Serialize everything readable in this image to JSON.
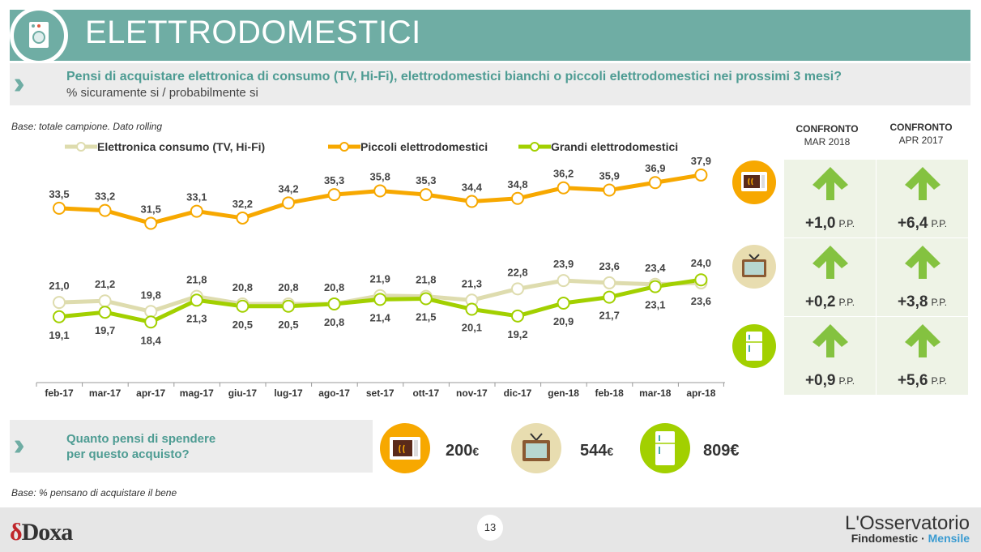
{
  "header": {
    "title": "ELETTRODOMESTICI",
    "icon": "washing-machine-icon"
  },
  "question": {
    "text": "Pensi di acquistare elettronica di consumo (TV, Hi-Fi), elettrodomestici bianchi o piccoli elettrodomestici nei prossimi 3 mesi?",
    "subtitle": "% sicuramente si / probabilmente si"
  },
  "base_note": "Base: totale campione. Dato rolling",
  "chart_data": {
    "type": "line",
    "categories": [
      "feb-17",
      "mar-17",
      "apr-17",
      "mag-17",
      "giu-17",
      "lug-17",
      "ago-17",
      "set-17",
      "ott-17",
      "nov-17",
      "dic-17",
      "gen-18",
      "feb-18",
      "mar-18",
      "apr-18"
    ],
    "series": [
      {
        "name": "Elettronica consumo (TV, Hi-Fi)",
        "color": "#dedcae",
        "values": [
          21.0,
          21.2,
          19.8,
          21.8,
          20.8,
          20.8,
          20.8,
          21.9,
          21.8,
          21.3,
          22.8,
          23.9,
          23.6,
          23.4,
          23.6
        ]
      },
      {
        "name": "Piccoli elettrodomestici",
        "color": "#f7a800",
        "values": [
          33.5,
          33.2,
          31.5,
          33.1,
          32.2,
          34.2,
          35.3,
          35.8,
          35.3,
          34.4,
          34.8,
          36.2,
          35.9,
          36.9,
          37.9
        ]
      },
      {
        "name": "Grandi elettrodomestici",
        "color": "#a2d000",
        "values": [
          19.1,
          19.7,
          18.4,
          21.3,
          20.5,
          20.5,
          20.8,
          21.4,
          21.5,
          20.1,
          19.2,
          20.9,
          21.7,
          23.1,
          24.0
        ]
      }
    ],
    "labels": {
      "piccoli": [
        "33,5",
        "33,2",
        "31,5",
        "33,1",
        "32,2",
        "34,2",
        "35,3",
        "35,8",
        "35,3",
        "34,4",
        "34,8",
        "36,2",
        "35,9",
        "36,9",
        "37,9"
      ],
      "upper": [
        "21,0",
        "21,2",
        "19,8",
        "21,8",
        "20,8",
        "20,8",
        "20,8",
        "21,9",
        "21,8",
        "21,3",
        "22,8",
        "23,9",
        "23,6",
        "23,4",
        "24,0"
      ],
      "lower": [
        "19,1",
        "19,7",
        "18,4",
        "21,3",
        "20,5",
        "20,5",
        "20,8",
        "21,4",
        "21,5",
        "20,1",
        "19,2",
        "20,9",
        "21,7",
        "23,1",
        "23,6"
      ]
    },
    "legend_position": "top",
    "grid": false
  },
  "comparison": {
    "headers": [
      {
        "title": "CONFRONTO",
        "sub": "MAR 2018"
      },
      {
        "title": "CONFRONTO",
        "sub": "APR 2017"
      }
    ],
    "unit": "P.P.",
    "rows": [
      {
        "item": "microwave-icon",
        "color": "#f7a800",
        "mar2018": "+1,0",
        "apr2017": "+6,4"
      },
      {
        "item": "tv-icon",
        "color": "#e8ddb0",
        "mar2018": "+0,2",
        "apr2017": "+3,8"
      },
      {
        "item": "fridge-icon",
        "color": "#a2d000",
        "mar2018": "+0,9",
        "apr2017": "+5,6"
      }
    ],
    "arrow_color": "#84c240"
  },
  "spending": {
    "question_line1": "Quanto pensi di spendere",
    "question_line2": "per questo acquisto?",
    "items": [
      {
        "icon": "microwave-icon",
        "value": "200",
        "currency": "€"
      },
      {
        "icon": "tv-icon",
        "value": "544",
        "currency": "€"
      },
      {
        "icon": "fridge-icon",
        "value": "809€",
        "currency": ""
      }
    ]
  },
  "base_note2": "Base: % pensano di acquistare il bene",
  "footer": {
    "logo_mark": "δ",
    "logo_text": "Doxa",
    "page": "13",
    "brand_line1": "L'Osservatorio",
    "brand_line2a": "Findomestic · ",
    "brand_line2b": "Mensile"
  }
}
